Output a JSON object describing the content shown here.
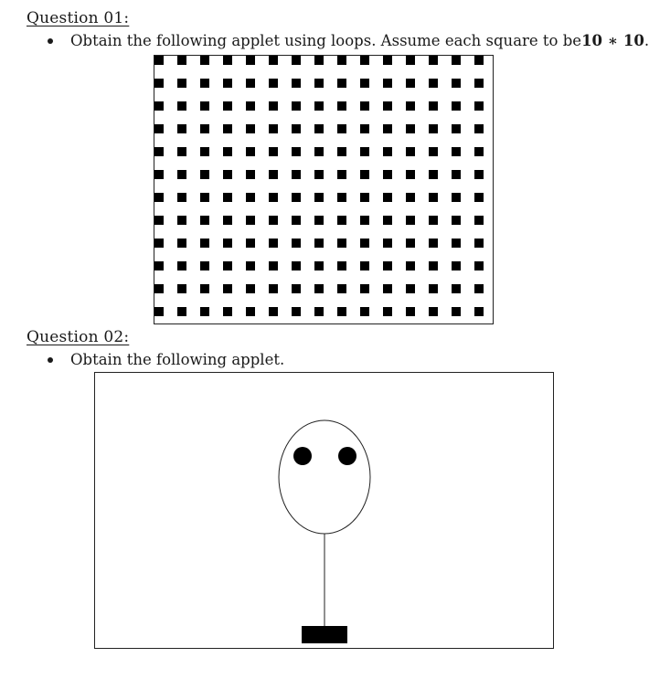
{
  "question1": {
    "heading": "Question 01:",
    "instruction_text": "Obtain the following applet using loops. Assume each square to be ",
    "size_expression": "10 ∗ 10",
    "instruction_end": ".",
    "applet": {
      "columns": 15,
      "rows": 12,
      "square_size": 10,
      "square_color": "#000000"
    }
  },
  "question2": {
    "heading": "Question 02:",
    "instruction_text": "Obtain the following applet.",
    "applet": {
      "shapes": [
        "head-oval",
        "left-eye",
        "right-eye",
        "neck-line",
        "base-block"
      ],
      "fill_color": "#000000"
    }
  }
}
